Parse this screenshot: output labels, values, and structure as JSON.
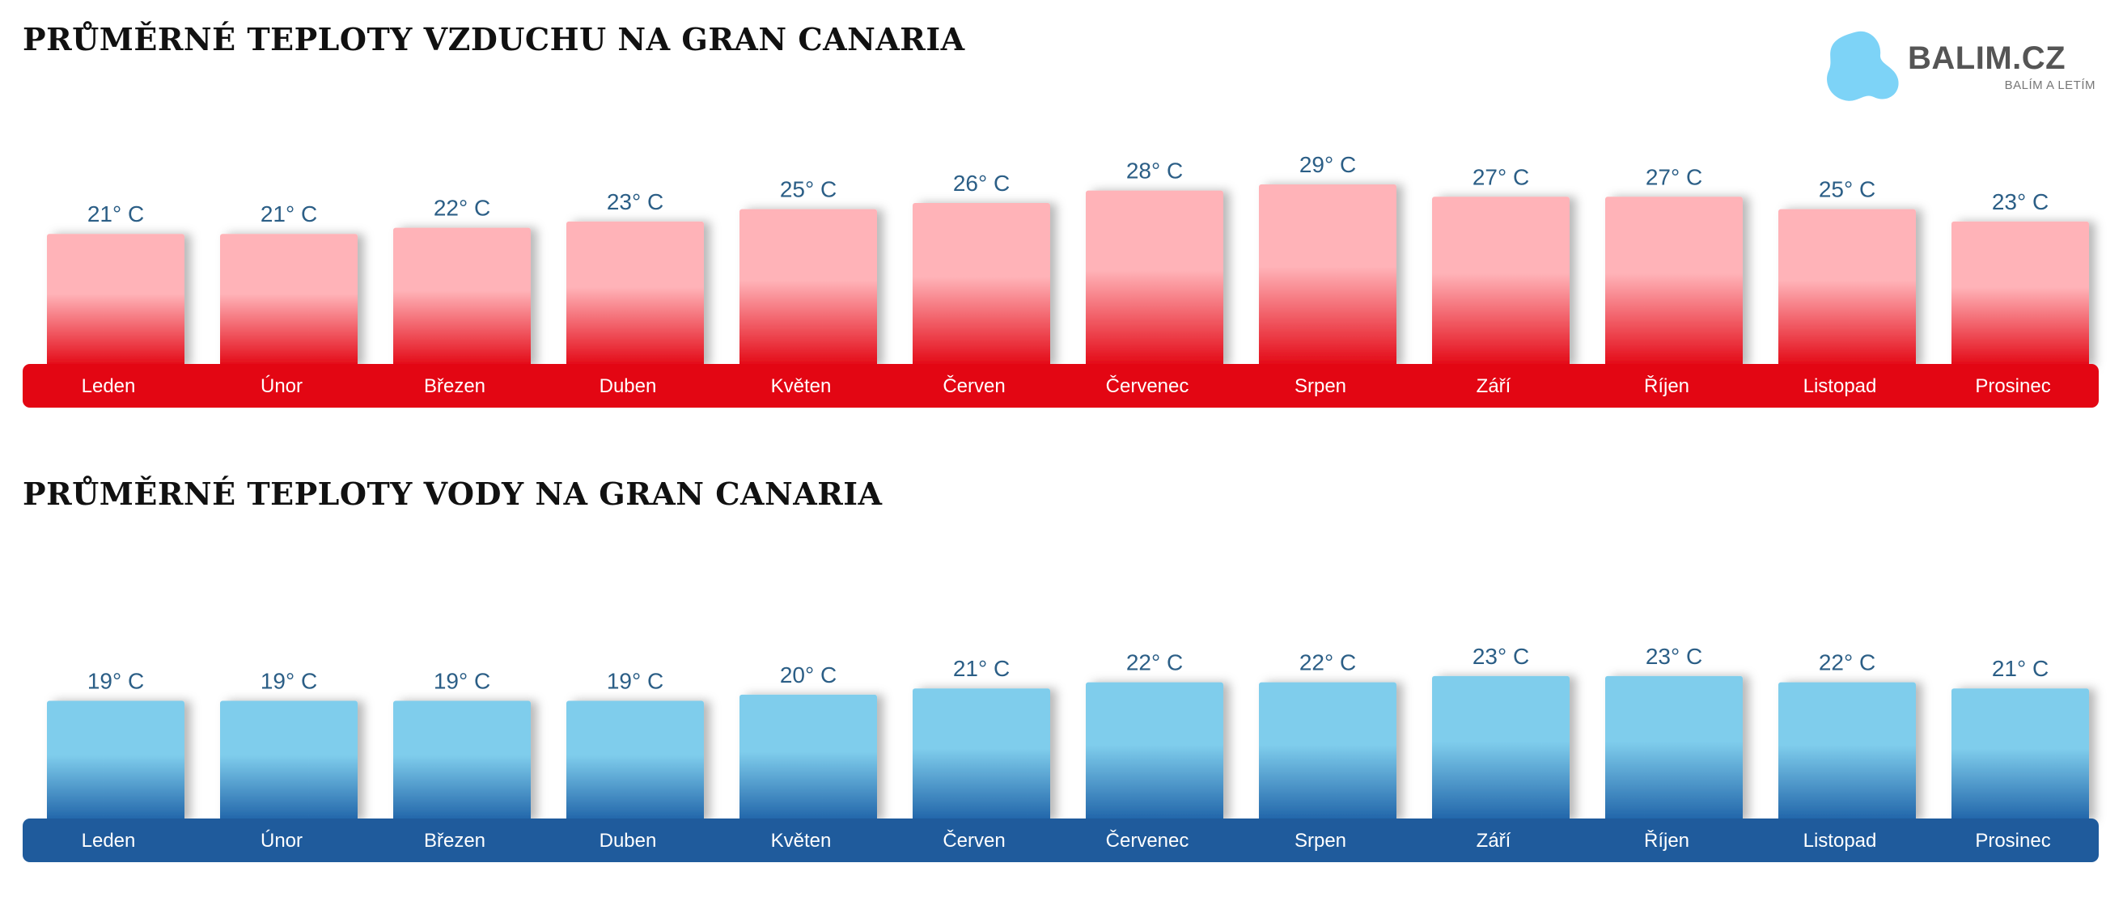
{
  "logo": {
    "name": "BALIM.CZ",
    "tagline": "BALÍM A LETÍM",
    "color": "#7dd3f7"
  },
  "chart_data": [
    {
      "type": "bar",
      "title": "PRŮMĚRNÉ TEPLOTY VZDUCHU NA GRAN CANARIA",
      "categories": [
        "Leden",
        "Únor",
        "Březen",
        "Duben",
        "Květen",
        "Červen",
        "Červenec",
        "Srpen",
        "Září",
        "Říjen",
        "Listopad",
        "Prosinec"
      ],
      "values": [
        21,
        21,
        22,
        23,
        25,
        26,
        28,
        29,
        27,
        27,
        25,
        23
      ],
      "value_labels": [
        "21° C",
        "21° C",
        "22° C",
        "23° C",
        "25° C",
        "26° C",
        "28° C",
        "29° C",
        "27° C",
        "27° C",
        "25° C",
        "23° C"
      ],
      "unit": "° C",
      "colors": {
        "bar_top": "#ffb3b8",
        "bar_bottom": "#e30613",
        "band": "#e30613",
        "value_text": "#2b5e86"
      }
    },
    {
      "type": "bar",
      "title": "PRŮMĚRNÉ TEPLOTY VODY NA GRAN CANARIA",
      "categories": [
        "Leden",
        "Únor",
        "Březen",
        "Duben",
        "Květen",
        "Červen",
        "Červenec",
        "Srpen",
        "Září",
        "Říjen",
        "Listopad",
        "Prosinec"
      ],
      "values": [
        19,
        19,
        19,
        19,
        20,
        21,
        22,
        22,
        23,
        23,
        22,
        21
      ],
      "value_labels": [
        "19° C",
        "19° C",
        "19° C",
        "19° C",
        "20° C",
        "21° C",
        "22° C",
        "22° C",
        "23° C",
        "23° C",
        "22° C",
        "21° C"
      ],
      "unit": "° C",
      "colors": {
        "bar_top": "#7fcdec",
        "bar_bottom": "#1f63a8",
        "band": "#1f5b9c",
        "value_text": "#2b5e86"
      }
    }
  ]
}
